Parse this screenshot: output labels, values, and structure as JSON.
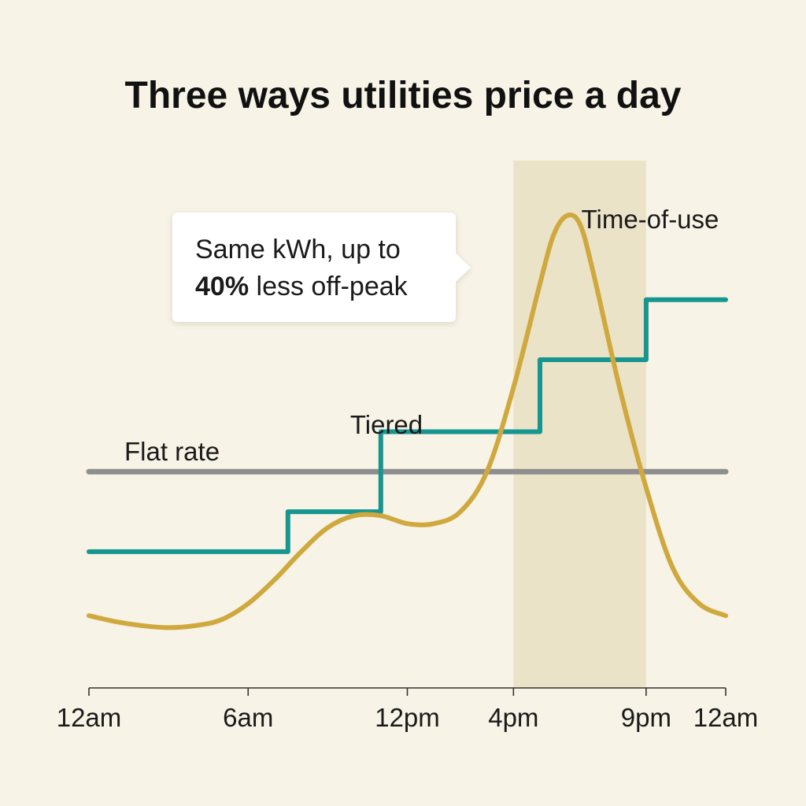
{
  "chart_data": {
    "type": "line",
    "title": "Three ways utilities price a day",
    "x_ticks": [
      {
        "hour": 0,
        "label": "12am"
      },
      {
        "hour": 6,
        "label": "6am"
      },
      {
        "hour": 12,
        "label": "12pm"
      },
      {
        "hour": 16,
        "label": "4pm"
      },
      {
        "hour": 21,
        "label": "9pm"
      },
      {
        "hour": 24,
        "label": "12am"
      }
    ],
    "xlim": [
      0,
      24
    ],
    "ylim": [
      0,
      100
    ],
    "y_axis_shown": false,
    "grid": false,
    "legend": "inline labels next to each series",
    "highlight_band": {
      "from_hour": 16,
      "to_hour": 21,
      "color": "#ebe3c8"
    },
    "series": [
      {
        "name": "Flat rate",
        "shape": "constant",
        "color": "#8e8e8e",
        "points": [
          [
            0,
            34
          ],
          [
            24,
            34
          ]
        ]
      },
      {
        "name": "Tiered",
        "shape": "step",
        "color": "#17968f",
        "points": [
          [
            0,
            14
          ],
          [
            7.5,
            14
          ],
          [
            7.5,
            24
          ],
          [
            11,
            24
          ],
          [
            11,
            44
          ],
          [
            17,
            44
          ],
          [
            17,
            62
          ],
          [
            21,
            62
          ],
          [
            21,
            77
          ],
          [
            24,
            77
          ]
        ]
      },
      {
        "name": "Time-of-use",
        "shape": "smooth",
        "color": "#cfa83e",
        "points": [
          [
            0,
            -2
          ],
          [
            1,
            -3.5
          ],
          [
            2,
            -4.5
          ],
          [
            3,
            -5
          ],
          [
            4,
            -4.5
          ],
          [
            5,
            -3
          ],
          [
            6,
            1
          ],
          [
            7,
            7
          ],
          [
            8,
            14
          ],
          [
            9,
            20
          ],
          [
            10,
            23
          ],
          [
            11,
            23
          ],
          [
            12,
            21
          ],
          [
            13,
            21
          ],
          [
            14,
            24
          ],
          [
            15,
            34
          ],
          [
            16,
            55
          ],
          [
            17,
            81
          ],
          [
            17.5,
            93
          ],
          [
            18,
            98
          ],
          [
            18.5,
            96
          ],
          [
            19,
            84
          ],
          [
            20,
            55
          ],
          [
            21,
            30
          ],
          [
            22,
            10
          ],
          [
            23,
            1
          ],
          [
            24,
            -2
          ]
        ]
      }
    ],
    "annotations": [
      {
        "text_lines": [
          [
            {
              "text": "Same kWh, up to",
              "bold": false
            }
          ],
          [
            {
              "text": "40%",
              "bold": true
            },
            {
              "text": " less off-peak",
              "bold": false
            }
          ]
        ],
        "points_to": "Time-of-use peak"
      }
    ]
  }
}
